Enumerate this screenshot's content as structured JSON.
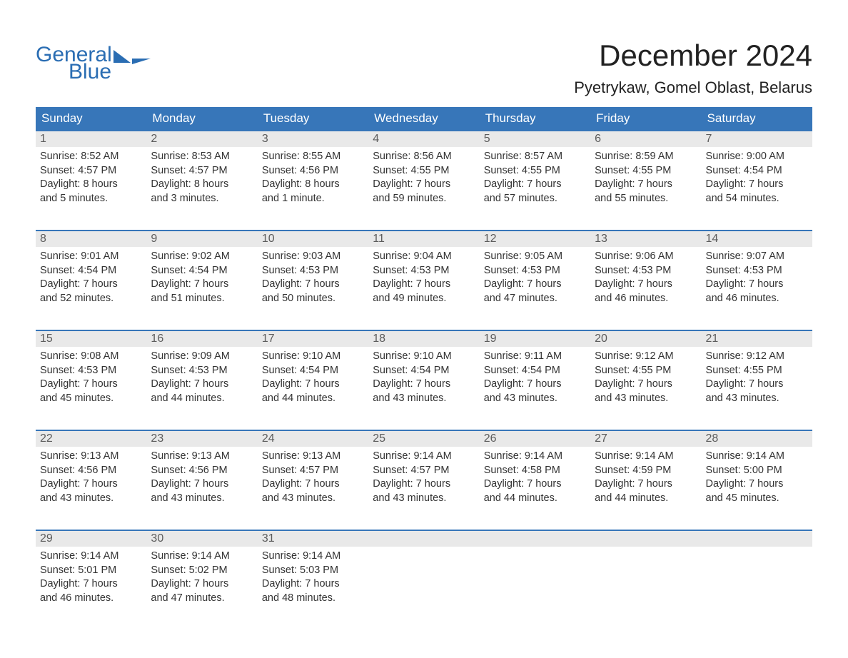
{
  "brand": {
    "line1": "General",
    "line2": "Blue"
  },
  "title": "December 2024",
  "location": "Pyetrykaw, Gomel Oblast, Belarus",
  "colors": {
    "header_bg": "#3776b9",
    "header_text": "#ffffff",
    "daynum_bg": "#e9e9e9",
    "daynum_text": "#5c5c5c",
    "body_text": "#333333",
    "brand": "#2a6db3",
    "week_border": "#3776b9",
    "page_bg": "#ffffff"
  },
  "typography": {
    "month_title_fontsize": 42,
    "location_fontsize": 22,
    "dow_fontsize": 17,
    "daynum_fontsize": 16,
    "body_fontsize": 14.5
  },
  "days_of_week": [
    "Sunday",
    "Monday",
    "Tuesday",
    "Wednesday",
    "Thursday",
    "Friday",
    "Saturday"
  ],
  "weeks": [
    [
      {
        "n": "1",
        "sr": "Sunrise: 8:52 AM",
        "ss": "Sunset: 4:57 PM",
        "d1": "Daylight: 8 hours",
        "d2": "and 5 minutes."
      },
      {
        "n": "2",
        "sr": "Sunrise: 8:53 AM",
        "ss": "Sunset: 4:57 PM",
        "d1": "Daylight: 8 hours",
        "d2": "and 3 minutes."
      },
      {
        "n": "3",
        "sr": "Sunrise: 8:55 AM",
        "ss": "Sunset: 4:56 PM",
        "d1": "Daylight: 8 hours",
        "d2": "and 1 minute."
      },
      {
        "n": "4",
        "sr": "Sunrise: 8:56 AM",
        "ss": "Sunset: 4:55 PM",
        "d1": "Daylight: 7 hours",
        "d2": "and 59 minutes."
      },
      {
        "n": "5",
        "sr": "Sunrise: 8:57 AM",
        "ss": "Sunset: 4:55 PM",
        "d1": "Daylight: 7 hours",
        "d2": "and 57 minutes."
      },
      {
        "n": "6",
        "sr": "Sunrise: 8:59 AM",
        "ss": "Sunset: 4:55 PM",
        "d1": "Daylight: 7 hours",
        "d2": "and 55 minutes."
      },
      {
        "n": "7",
        "sr": "Sunrise: 9:00 AM",
        "ss": "Sunset: 4:54 PM",
        "d1": "Daylight: 7 hours",
        "d2": "and 54 minutes."
      }
    ],
    [
      {
        "n": "8",
        "sr": "Sunrise: 9:01 AM",
        "ss": "Sunset: 4:54 PM",
        "d1": "Daylight: 7 hours",
        "d2": "and 52 minutes."
      },
      {
        "n": "9",
        "sr": "Sunrise: 9:02 AM",
        "ss": "Sunset: 4:54 PM",
        "d1": "Daylight: 7 hours",
        "d2": "and 51 minutes."
      },
      {
        "n": "10",
        "sr": "Sunrise: 9:03 AM",
        "ss": "Sunset: 4:53 PM",
        "d1": "Daylight: 7 hours",
        "d2": "and 50 minutes."
      },
      {
        "n": "11",
        "sr": "Sunrise: 9:04 AM",
        "ss": "Sunset: 4:53 PM",
        "d1": "Daylight: 7 hours",
        "d2": "and 49 minutes."
      },
      {
        "n": "12",
        "sr": "Sunrise: 9:05 AM",
        "ss": "Sunset: 4:53 PM",
        "d1": "Daylight: 7 hours",
        "d2": "and 47 minutes."
      },
      {
        "n": "13",
        "sr": "Sunrise: 9:06 AM",
        "ss": "Sunset: 4:53 PM",
        "d1": "Daylight: 7 hours",
        "d2": "and 46 minutes."
      },
      {
        "n": "14",
        "sr": "Sunrise: 9:07 AM",
        "ss": "Sunset: 4:53 PM",
        "d1": "Daylight: 7 hours",
        "d2": "and 46 minutes."
      }
    ],
    [
      {
        "n": "15",
        "sr": "Sunrise: 9:08 AM",
        "ss": "Sunset: 4:53 PM",
        "d1": "Daylight: 7 hours",
        "d2": "and 45 minutes."
      },
      {
        "n": "16",
        "sr": "Sunrise: 9:09 AM",
        "ss": "Sunset: 4:53 PM",
        "d1": "Daylight: 7 hours",
        "d2": "and 44 minutes."
      },
      {
        "n": "17",
        "sr": "Sunrise: 9:10 AM",
        "ss": "Sunset: 4:54 PM",
        "d1": "Daylight: 7 hours",
        "d2": "and 44 minutes."
      },
      {
        "n": "18",
        "sr": "Sunrise: 9:10 AM",
        "ss": "Sunset: 4:54 PM",
        "d1": "Daylight: 7 hours",
        "d2": "and 43 minutes."
      },
      {
        "n": "19",
        "sr": "Sunrise: 9:11 AM",
        "ss": "Sunset: 4:54 PM",
        "d1": "Daylight: 7 hours",
        "d2": "and 43 minutes."
      },
      {
        "n": "20",
        "sr": "Sunrise: 9:12 AM",
        "ss": "Sunset: 4:55 PM",
        "d1": "Daylight: 7 hours",
        "d2": "and 43 minutes."
      },
      {
        "n": "21",
        "sr": "Sunrise: 9:12 AM",
        "ss": "Sunset: 4:55 PM",
        "d1": "Daylight: 7 hours",
        "d2": "and 43 minutes."
      }
    ],
    [
      {
        "n": "22",
        "sr": "Sunrise: 9:13 AM",
        "ss": "Sunset: 4:56 PM",
        "d1": "Daylight: 7 hours",
        "d2": "and 43 minutes."
      },
      {
        "n": "23",
        "sr": "Sunrise: 9:13 AM",
        "ss": "Sunset: 4:56 PM",
        "d1": "Daylight: 7 hours",
        "d2": "and 43 minutes."
      },
      {
        "n": "24",
        "sr": "Sunrise: 9:13 AM",
        "ss": "Sunset: 4:57 PM",
        "d1": "Daylight: 7 hours",
        "d2": "and 43 minutes."
      },
      {
        "n": "25",
        "sr": "Sunrise: 9:14 AM",
        "ss": "Sunset: 4:57 PM",
        "d1": "Daylight: 7 hours",
        "d2": "and 43 minutes."
      },
      {
        "n": "26",
        "sr": "Sunrise: 9:14 AM",
        "ss": "Sunset: 4:58 PM",
        "d1": "Daylight: 7 hours",
        "d2": "and 44 minutes."
      },
      {
        "n": "27",
        "sr": "Sunrise: 9:14 AM",
        "ss": "Sunset: 4:59 PM",
        "d1": "Daylight: 7 hours",
        "d2": "and 44 minutes."
      },
      {
        "n": "28",
        "sr": "Sunrise: 9:14 AM",
        "ss": "Sunset: 5:00 PM",
        "d1": "Daylight: 7 hours",
        "d2": "and 45 minutes."
      }
    ],
    [
      {
        "n": "29",
        "sr": "Sunrise: 9:14 AM",
        "ss": "Sunset: 5:01 PM",
        "d1": "Daylight: 7 hours",
        "d2": "and 46 minutes."
      },
      {
        "n": "30",
        "sr": "Sunrise: 9:14 AM",
        "ss": "Sunset: 5:02 PM",
        "d1": "Daylight: 7 hours",
        "d2": "and 47 minutes."
      },
      {
        "n": "31",
        "sr": "Sunrise: 9:14 AM",
        "ss": "Sunset: 5:03 PM",
        "d1": "Daylight: 7 hours",
        "d2": "and 48 minutes."
      },
      null,
      null,
      null,
      null
    ]
  ]
}
